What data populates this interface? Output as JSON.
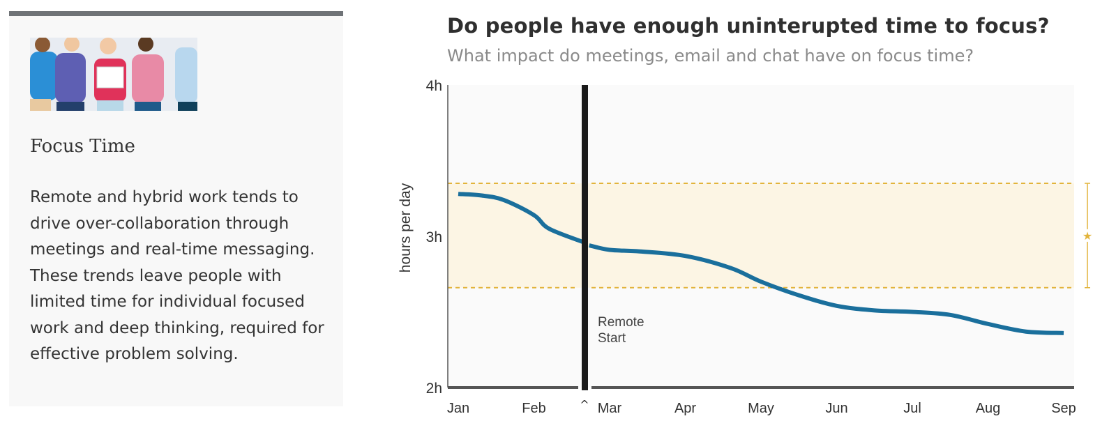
{
  "card": {
    "title": "Focus Time",
    "body": "Remote and hybrid work tends to drive over-collaboration through meetings and real-time messaging. These trends leave people with limited time for individual focused work and deep thinking, required for effective problem solving."
  },
  "colors": {
    "line": "#1a6f9c",
    "band": "#fcf5e4",
    "band_border": "#e2b43c",
    "plot_bg": "#fafafa",
    "axis": "#555555",
    "marker": "#1a1a1a"
  },
  "chart_data": {
    "type": "line",
    "title": "Do people have enough uninterupted time to focus?",
    "subtitle": "What impact do meetings, email and chat have on focus time?",
    "ylabel": "hours per day",
    "ylim": [
      2,
      4
    ],
    "y_ticks": [
      {
        "value": 2,
        "label": "2h"
      },
      {
        "value": 3,
        "label": "3h"
      },
      {
        "value": 4,
        "label": "4h"
      }
    ],
    "categories": [
      "Jan",
      "Feb",
      "Mar",
      "Apr",
      "May",
      "Jun",
      "Jul",
      "Aug",
      "Sep"
    ],
    "band": {
      "low": 2.66,
      "high": 3.35,
      "marker": "★"
    },
    "event": {
      "label": "Remote Start",
      "caret": "^",
      "position_after": "Feb"
    },
    "series": [
      {
        "segments": [
          {
            "x": [
              1,
              1.3,
              1.6,
              2.0,
              2.2,
              2.66
            ],
            "y": [
              3.28,
              3.27,
              3.24,
              3.14,
              3.05,
              2.96
            ]
          },
          {
            "x": [
              2.73,
              3.0,
              3.4,
              4.0,
              4.6,
              5.0,
              5.5,
              6.0,
              6.5,
              7.0,
              7.5,
              8.0,
              8.5,
              9.0
            ],
            "y": [
              2.94,
              2.91,
              2.9,
              2.87,
              2.79,
              2.7,
              2.61,
              2.54,
              2.51,
              2.5,
              2.48,
              2.42,
              2.37,
              2.36
            ]
          }
        ]
      }
    ]
  }
}
